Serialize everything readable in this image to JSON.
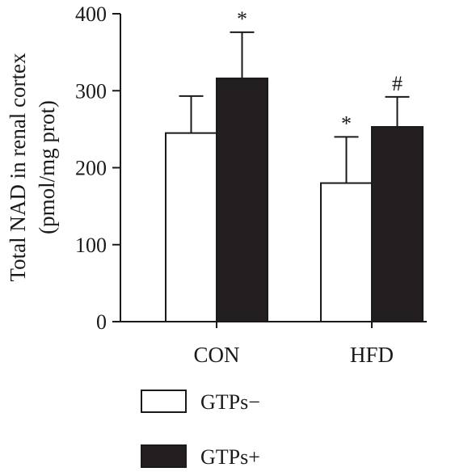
{
  "chart_data": {
    "type": "bar",
    "ylabel_line1": "Total NAD in renal cortex",
    "ylabel_line2": "(pmol/mg prot)",
    "ylim": [
      0,
      400
    ],
    "yticks": [
      "0",
      "100",
      "200",
      "300",
      "400"
    ],
    "categories": [
      "CON",
      "HFD"
    ],
    "series": [
      {
        "name": "GTPs−",
        "values": [
          245,
          180
        ],
        "errors": [
          48,
          60
        ],
        "annotations": [
          "",
          "*"
        ],
        "color": "#ffffff"
      },
      {
        "name": "GTPs+",
        "values": [
          316,
          253
        ],
        "errors": [
          60,
          39
        ],
        "annotations": [
          "*",
          "#"
        ],
        "color": "#231f20"
      }
    ],
    "legend_position": "bottom"
  }
}
